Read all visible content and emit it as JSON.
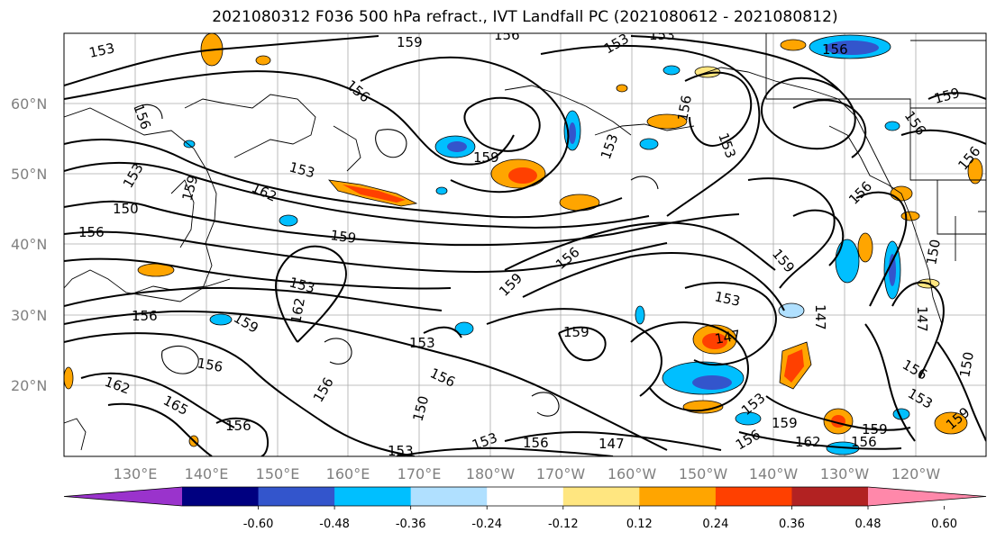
{
  "title": "2021080312 F036 500 hPa refract., IVT Landfall PC (2021080612 - 2021080812)",
  "lat_labels": [
    "60°N",
    "50°N",
    "40°N",
    "30°N",
    "20°N"
  ],
  "lon_labels": [
    "130°E",
    "140°E",
    "150°E",
    "160°E",
    "170°E",
    "180°W",
    "170°W",
    "160°W",
    "150°W",
    "140°W",
    "130°W",
    "120°W"
  ],
  "colorbar": {
    "ticks": [
      "-0.60",
      "-0.48",
      "-0.36",
      "-0.24",
      "-0.12",
      "0.12",
      "0.24",
      "0.36",
      "0.48",
      "0.60"
    ],
    "colors": [
      "#9a33cc",
      "#000080",
      "#3355cc",
      "#00bfff",
      "#b0e0ff",
      "#ffffff",
      "#ffe680",
      "#ffa500",
      "#ff4000",
      "#b22222",
      "#ff88aa"
    ]
  },
  "contour_labels": [
    "153",
    "156",
    "159",
    "162",
    "165",
    "150",
    "147"
  ]
}
